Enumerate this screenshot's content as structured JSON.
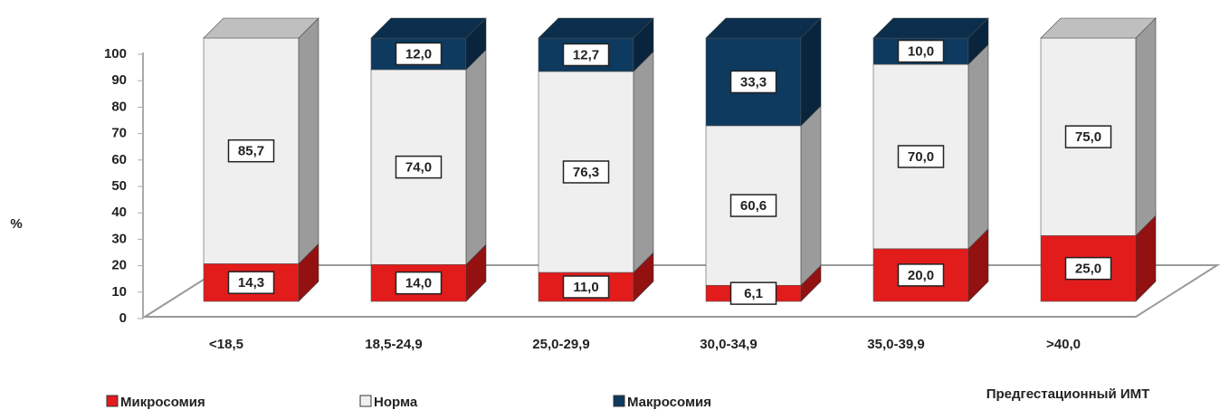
{
  "chart_data": {
    "type": "bar3d_stacked",
    "ylabel": "%",
    "xlabel": "Предгестационный ИМТ",
    "categories": [
      "<18,5",
      "18,5-24,9",
      "25,0-29,9",
      "30,0-34,9",
      "35,0-39,9",
      ">40,0"
    ],
    "ylim": [
      0,
      100
    ],
    "yticks": [
      0,
      10,
      20,
      30,
      40,
      50,
      60,
      70,
      80,
      90,
      100
    ],
    "series": [
      {
        "name": "Микросомия",
        "color": "#e21b1b",
        "values": [
          14.3,
          14.0,
          11.0,
          6.1,
          20.0,
          25.0
        ],
        "value_labels": [
          "14,3",
          "14,0",
          "11,0",
          "6,1",
          "20,0",
          "25,0"
        ]
      },
      {
        "name": "Норма",
        "color": "#efefef",
        "values": [
          85.7,
          74.0,
          76.3,
          60.6,
          70.0,
          75.0
        ],
        "value_labels": [
          "85,7",
          "74,0",
          "76,3",
          "60,6",
          "70,0",
          "75,0"
        ]
      },
      {
        "name": "Макросомия",
        "color": "#0d3a5e",
        "values": [
          null,
          12.0,
          12.7,
          33.3,
          10.0,
          null
        ],
        "value_labels": [
          null,
          "12,0",
          "12,7",
          "33,3",
          "10,0",
          null
        ]
      }
    ]
  }
}
